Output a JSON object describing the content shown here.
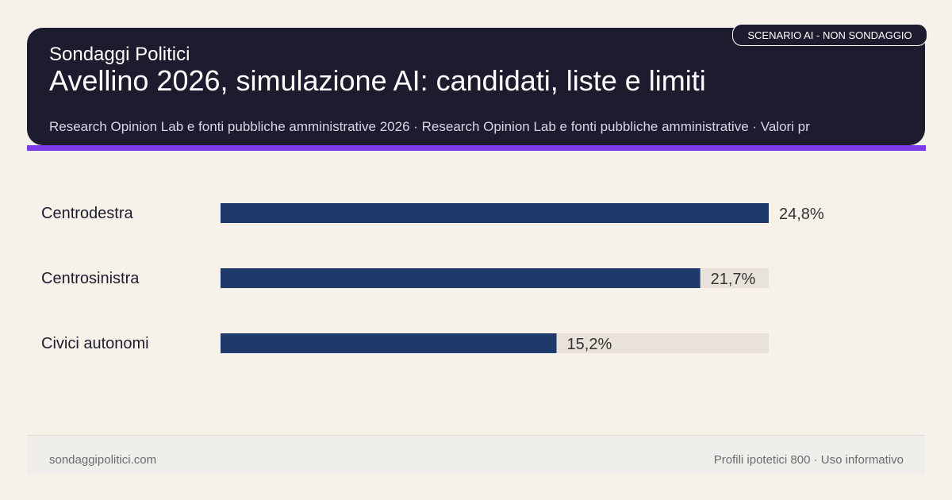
{
  "header": {
    "brand": "Sondaggi Politici",
    "title": "Avellino 2026, simulazione AI: candidati, liste e limiti",
    "sources": "Research Opinion Lab e fonti pubbliche amministrative 2026 · Research Opinion Lab e fonti pubbliche amministrative · Valori pr"
  },
  "badge": {
    "label": "SCENARIO AI - NON SONDAGGIO"
  },
  "chart_data": {
    "type": "bar",
    "orientation": "horizontal",
    "categories": [
      "Centrodestra",
      "Centrosinistra",
      "Civici autonomi"
    ],
    "values": [
      24.8,
      21.7,
      15.2
    ],
    "value_labels": [
      "24,8%",
      "21,7%",
      "15,2%"
    ],
    "xlim": [
      0,
      24.8
    ],
    "grid": false,
    "colors": {
      "bar": "#1e3a6b",
      "track": "#e8e2da"
    }
  },
  "footer": {
    "site": "sondaggipolitici.com",
    "note": "Profili ipotetici 800 · Uso informativo"
  }
}
